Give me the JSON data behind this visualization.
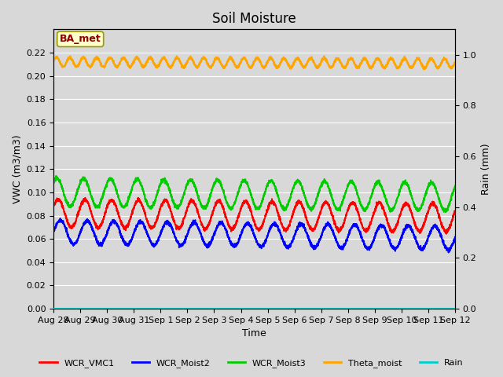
{
  "title": "Soil Moisture",
  "xlabel": "Time",
  "ylabel_left": "VWC (m3/m3)",
  "ylabel_right": "Rain (mm)",
  "ylim_left": [
    0.0,
    0.24
  ],
  "ylim_right": [
    0.0,
    1.1
  ],
  "yticks_left": [
    0.0,
    0.02,
    0.04,
    0.06,
    0.08,
    0.1,
    0.12,
    0.14,
    0.16,
    0.18,
    0.2,
    0.22
  ],
  "yticks_right": [
    0.0,
    0.2,
    0.4,
    0.6,
    0.8,
    1.0
  ],
  "n_days": 15,
  "fig_bg_color": "#d8d8d8",
  "ax_bg_color": "#d8d8d8",
  "grid_color": "#ffffff",
  "annotation_text": "BA_met",
  "annotation_color": "#8b0000",
  "annotation_bg": "#ffffcc",
  "annotation_border": "#999900",
  "series": {
    "WCR_VMC1": {
      "color": "#ff0000",
      "base": 0.082,
      "amp": 0.012,
      "freq_per_day": 1.0,
      "phase": 0.5,
      "trend": -0.00025
    },
    "WCR_Moist2": {
      "color": "#0000ff",
      "base": 0.066,
      "amp": 0.01,
      "freq_per_day": 1.0,
      "phase": 0.0,
      "trend": -0.00035
    },
    "WCR_Moist3": {
      "color": "#00cc00",
      "base": 0.1,
      "amp": 0.012,
      "freq_per_day": 1.0,
      "phase": 0.8,
      "trend": -0.00025
    },
    "Theta_moist": {
      "color": "#ffa500",
      "base": 0.212,
      "amp": 0.004,
      "freq_per_day": 2.0,
      "phase": 0.2,
      "trend": -8e-05
    },
    "Rain": {
      "color": "#00cccc",
      "base": 0.001,
      "amp": 0.0005,
      "freq_per_day": 1.0,
      "phase": 0.0,
      "trend": 0.0
    }
  },
  "legend_items": [
    {
      "label": "WCR_VMC1",
      "color": "#ff0000"
    },
    {
      "label": "WCR_Moist2",
      "color": "#0000ff"
    },
    {
      "label": "WCR_Moist3",
      "color": "#00cc00"
    },
    {
      "label": "Theta_moist",
      "color": "#ffa500"
    },
    {
      "label": "Rain",
      "color": "#00cccc"
    }
  ],
  "xtick_labels": [
    "Aug 28",
    "Aug 29",
    "Aug 30",
    "Aug 31",
    "Sep 1",
    "Sep 2",
    "Sep 3",
    "Sep 4",
    "Sep 5",
    "Sep 6",
    "Sep 7",
    "Sep 8",
    "Sep 9",
    "Sep 10",
    "Sep 11",
    "Sep 12"
  ],
  "n_points": 3600,
  "title_fontsize": 12,
  "tick_fontsize": 8,
  "label_fontsize": 9,
  "legend_fontsize": 8
}
